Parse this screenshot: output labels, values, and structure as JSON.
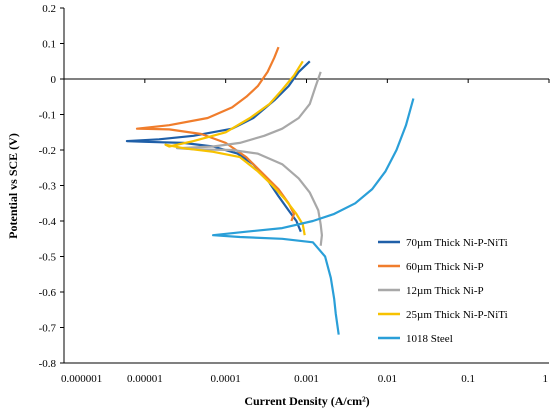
{
  "chart_data": {
    "type": "line",
    "title": "",
    "xlabel": "Current Density (A/cm²)",
    "ylabel": "Potential vs SCE (V)",
    "xscale": "log",
    "xlim": [
      1e-06,
      1
    ],
    "ylim": [
      -0.8,
      0.2
    ],
    "x_ticks": [
      1e-06,
      1e-05,
      0.0001,
      0.001,
      0.01,
      0.1,
      1
    ],
    "x_tick_labels": [
      "0.000001",
      "0.00001",
      "0.0001",
      "0.001",
      "0.01",
      "0.1",
      "1"
    ],
    "y_ticks": [
      -0.8,
      -0.7,
      -0.6,
      -0.5,
      -0.4,
      -0.3,
      -0.2,
      -0.1,
      0,
      0.1,
      0.2
    ],
    "y_tick_labels": [
      "-0.8",
      "-0.7",
      "-0.6",
      "-0.5",
      "-0.4",
      "-0.3",
      "-0.2",
      "-0.1",
      "0",
      "0.1",
      "0.2"
    ],
    "grid": false,
    "legend_position": "bottom-right",
    "series": [
      {
        "name": "70µm Thick Ni-P-NiTi",
        "color": "#1f5fa8",
        "points": [
          [
            0.0011,
            0.05
          ],
          [
            0.0008,
            0.02
          ],
          [
            0.0006,
            -0.02
          ],
          [
            0.0004,
            -0.06
          ],
          [
            0.00022,
            -0.11
          ],
          [
            0.00012,
            -0.14
          ],
          [
            4e-05,
            -0.16
          ],
          [
            1.5e-05,
            -0.17
          ],
          [
            6e-06,
            -0.175
          ],
          [
            1e-05,
            -0.177
          ],
          [
            3e-05,
            -0.18
          ],
          [
            7e-05,
            -0.19
          ],
          [
            0.00014,
            -0.21
          ],
          [
            0.00022,
            -0.24
          ],
          [
            0.00032,
            -0.28
          ],
          [
            0.00045,
            -0.33
          ],
          [
            0.0006,
            -0.37
          ],
          [
            0.00075,
            -0.4
          ],
          [
            0.00085,
            -0.43
          ]
        ]
      },
      {
        "name": "60µm Thick Ni-P",
        "color": "#f07d2c",
        "points": [
          [
            0.00045,
            0.09
          ],
          [
            0.0004,
            0.06
          ],
          [
            0.00033,
            0.02
          ],
          [
            0.00025,
            -0.02
          ],
          [
            0.00018,
            -0.05
          ],
          [
            0.00012,
            -0.08
          ],
          [
            6e-05,
            -0.11
          ],
          [
            2e-05,
            -0.13
          ],
          [
            8e-06,
            -0.14
          ],
          [
            2e-05,
            -0.142
          ],
          [
            5e-05,
            -0.155
          ],
          [
            0.0001,
            -0.18
          ],
          [
            0.00018,
            -0.22
          ],
          [
            0.0003,
            -0.27
          ],
          [
            0.00045,
            -0.31
          ],
          [
            0.0006,
            -0.35
          ],
          [
            0.0007,
            -0.38
          ],
          [
            0.00065,
            -0.4
          ]
        ]
      },
      {
        "name": "12µm Thick Ni-P",
        "color": "#a8a8a8",
        "points": [
          [
            0.0015,
            0.02
          ],
          [
            0.0013,
            -0.02
          ],
          [
            0.0011,
            -0.07
          ],
          [
            0.0008,
            -0.11
          ],
          [
            0.0005,
            -0.14
          ],
          [
            0.0003,
            -0.16
          ],
          [
            0.00015,
            -0.18
          ],
          [
            7e-05,
            -0.19
          ],
          [
            2.5e-05,
            -0.195
          ],
          [
            4e-05,
            -0.198
          ],
          [
            0.00012,
            -0.2
          ],
          [
            0.00025,
            -0.21
          ],
          [
            0.0005,
            -0.24
          ],
          [
            0.0008,
            -0.28
          ],
          [
            0.0011,
            -0.32
          ],
          [
            0.0014,
            -0.37
          ],
          [
            0.0015,
            -0.41
          ],
          [
            0.00155,
            -0.44
          ],
          [
            0.0015,
            -0.47
          ]
        ]
      },
      {
        "name": "25µm Thick Ni-P-NiTi",
        "color": "#f7c200",
        "points": [
          [
            0.0009,
            0.05
          ],
          [
            0.0007,
            0.01
          ],
          [
            0.0005,
            -0.03
          ],
          [
            0.00035,
            -0.07
          ],
          [
            0.0002,
            -0.11
          ],
          [
            0.0001,
            -0.15
          ],
          [
            4e-05,
            -0.175
          ],
          [
            2e-05,
            -0.19
          ],
          [
            1.8e-05,
            -0.185
          ],
          [
            3e-05,
            -0.195
          ],
          [
            7e-05,
            -0.205
          ],
          [
            0.00015,
            -0.22
          ],
          [
            0.00025,
            -0.26
          ],
          [
            0.00038,
            -0.3
          ],
          [
            0.00055,
            -0.34
          ],
          [
            0.00075,
            -0.38
          ],
          [
            0.0009,
            -0.41
          ],
          [
            0.00095,
            -0.44
          ]
        ]
      },
      {
        "name": "1018 Steel",
        "color": "#2a9fd8",
        "points": [
          [
            0.021,
            -0.055
          ],
          [
            0.017,
            -0.13
          ],
          [
            0.013,
            -0.2
          ],
          [
            0.0095,
            -0.26
          ],
          [
            0.0065,
            -0.31
          ],
          [
            0.004,
            -0.35
          ],
          [
            0.0022,
            -0.38
          ],
          [
            0.0012,
            -0.4
          ],
          [
            0.0005,
            -0.42
          ],
          [
            0.00018,
            -0.43
          ],
          [
            7e-05,
            -0.44
          ],
          [
            0.00015,
            -0.445
          ],
          [
            0.0005,
            -0.45
          ],
          [
            0.0012,
            -0.46
          ],
          [
            0.0017,
            -0.5
          ],
          [
            0.002,
            -0.56
          ],
          [
            0.0022,
            -0.62
          ],
          [
            0.0023,
            -0.66
          ],
          [
            0.0025,
            -0.72
          ]
        ]
      }
    ]
  }
}
